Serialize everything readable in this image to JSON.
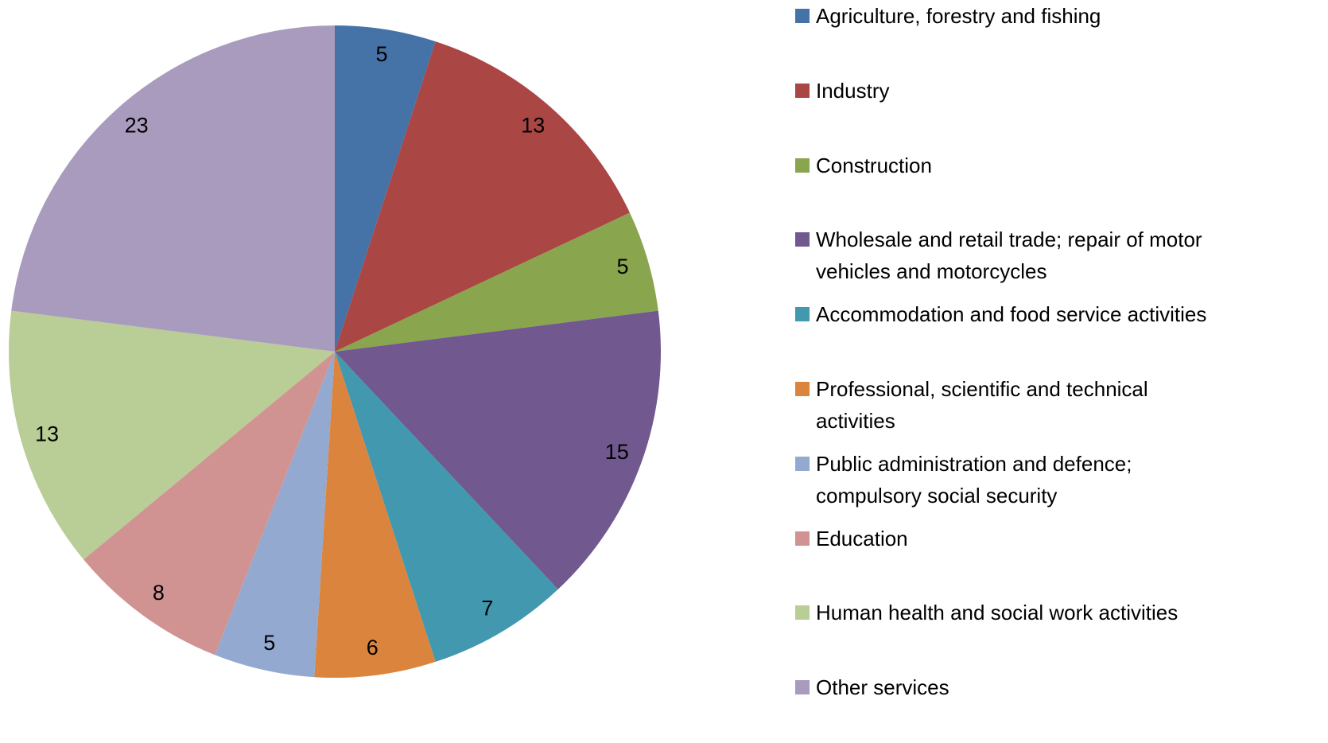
{
  "chart_data": {
    "type": "pie",
    "categories": [
      "Agriculture, forestry and fishing",
      "Industry",
      "Construction",
      "Wholesale and retail trade; repair of motor vehicles and motorcycles",
      "Accommodation and food service activities",
      "Professional, scientific and technical activities",
      "Public administration and defence; compulsory social security",
      "Education",
      "Human health and social work activities",
      "Other services"
    ],
    "values": [
      5,
      13,
      5,
      15,
      7,
      6,
      5,
      8,
      13,
      23
    ],
    "colors": [
      "#4572a7",
      "#aa4643",
      "#89a54e",
      "#71588f",
      "#4198af",
      "#db843d",
      "#93a9cf",
      "#d19392",
      "#b9cd96",
      "#a99bbd"
    ],
    "legend": "right"
  }
}
